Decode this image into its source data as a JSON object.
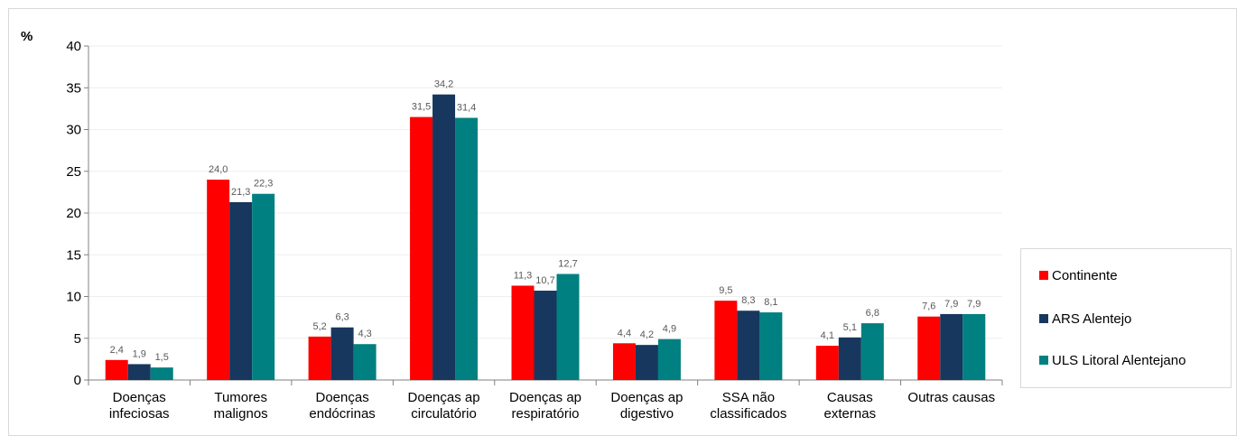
{
  "chart_data": {
    "type": "bar",
    "ylabel": "%",
    "ylim": [
      0,
      40
    ],
    "yticks": [
      "0",
      "5",
      "10",
      "15",
      "20",
      "25",
      "30",
      "35",
      "40"
    ],
    "categories": [
      [
        "Doenças",
        "infeciosas"
      ],
      [
        "Tumores",
        "malignos"
      ],
      [
        "Doenças",
        "endócrinas"
      ],
      [
        "Doenças ap",
        "circulatório"
      ],
      [
        "Doenças ap",
        "respiratório"
      ],
      [
        "Doenças ap",
        "digestivo"
      ],
      [
        "SSA não",
        "classificados"
      ],
      [
        "Causas",
        "externas"
      ],
      [
        "Outras causas"
      ]
    ],
    "series": [
      {
        "name": "Continente",
        "color": "#ff0000",
        "values": [
          2.4,
          24.0,
          5.2,
          31.5,
          11.3,
          4.4,
          9.5,
          4.1,
          7.6
        ],
        "labels": [
          "2,4",
          "24,0",
          "5,2",
          "31,5",
          "11,3",
          "4,4",
          "9,5",
          "4,1",
          "7,6"
        ]
      },
      {
        "name": "ARS Alentejo",
        "color": "#17375e",
        "values": [
          1.9,
          21.3,
          6.3,
          34.2,
          10.7,
          4.2,
          8.3,
          5.1,
          7.9
        ],
        "labels": [
          "1,9",
          "21,3",
          "6,3",
          "34,2",
          "10,7",
          "4,2",
          "8,3",
          "5,1",
          "7,9"
        ]
      },
      {
        "name": "ULS Litoral Alentejano",
        "color": "#008080",
        "values": [
          1.5,
          22.3,
          4.3,
          31.4,
          12.7,
          4.9,
          8.1,
          6.8,
          7.9
        ],
        "labels": [
          "1,5",
          "22,3",
          "4,3",
          "31,4",
          "12,7",
          "4,9",
          "8,1",
          "6,8",
          "7,9"
        ]
      }
    ],
    "grid": true,
    "legend_position": "right"
  }
}
